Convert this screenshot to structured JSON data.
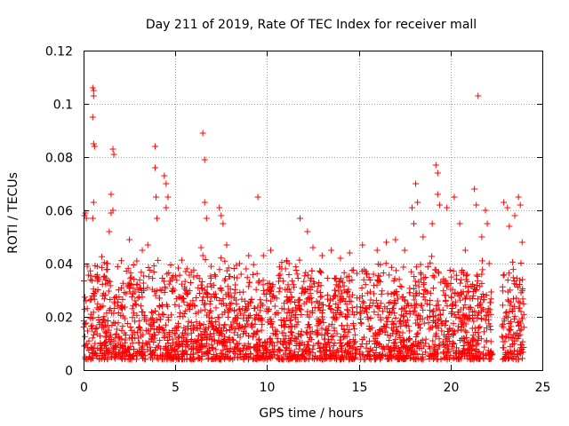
{
  "chart_data": {
    "type": "scatter",
    "title": "Day 211 of 2019, Rate Of TEC Index for receiver mall",
    "xlabel": "GPS time / hours",
    "ylabel": "ROTI / TECUs",
    "xlim": [
      0,
      25
    ],
    "ylim": [
      0,
      0.12
    ],
    "x_ticks": [
      0,
      5,
      10,
      15,
      20,
      25
    ],
    "x_tick_labels": [
      "0",
      "5",
      "10",
      "15",
      "20",
      "25"
    ],
    "y_ticks": [
      0,
      0.02,
      0.04,
      0.06,
      0.08,
      0.1,
      0.12
    ],
    "y_tick_labels": [
      "0",
      "0.02",
      "0.04",
      "0.06",
      "0.08",
      "0.1",
      "0.12"
    ],
    "grid": true,
    "marker": "+",
    "color": "#ff0000",
    "series": [
      {
        "name": "ROTI",
        "points": [
          [
            0.05,
            0.058
          ],
          [
            0.1,
            0.059
          ],
          [
            0.15,
            0.057
          ],
          [
            0.2,
            0.039
          ],
          [
            0.5,
            0.106
          ],
          [
            0.55,
            0.105
          ],
          [
            0.55,
            0.103
          ],
          [
            0.5,
            0.095
          ],
          [
            0.55,
            0.085
          ],
          [
            0.6,
            0.084
          ],
          [
            0.55,
            0.063
          ],
          [
            0.5,
            0.057
          ],
          [
            1.1,
            0.035
          ],
          [
            1.3,
            0.04
          ],
          [
            1.4,
            0.052
          ],
          [
            1.5,
            0.059
          ],
          [
            1.5,
            0.066
          ],
          [
            1.6,
            0.06
          ],
          [
            1.6,
            0.083
          ],
          [
            1.65,
            0.081
          ],
          [
            2.5,
            0.049
          ],
          [
            2.9,
            0.041
          ],
          [
            3.2,
            0.045
          ],
          [
            3.5,
            0.047
          ],
          [
            3.9,
            0.084
          ],
          [
            3.9,
            0.076
          ],
          [
            3.95,
            0.065
          ],
          [
            4.0,
            0.057
          ],
          [
            4.4,
            0.073
          ],
          [
            4.5,
            0.07
          ],
          [
            4.5,
            0.061
          ],
          [
            4.6,
            0.065
          ],
          [
            5.7,
            0.029
          ],
          [
            6.0,
            0.035
          ],
          [
            6.4,
            0.046
          ],
          [
            6.5,
            0.043
          ],
          [
            6.5,
            0.089
          ],
          [
            6.6,
            0.079
          ],
          [
            6.6,
            0.063
          ],
          [
            6.7,
            0.057
          ],
          [
            7.4,
            0.061
          ],
          [
            7.5,
            0.058
          ],
          [
            7.6,
            0.055
          ],
          [
            7.8,
            0.047
          ],
          [
            8.5,
            0.04
          ],
          [
            9.0,
            0.043
          ],
          [
            9.5,
            0.065
          ],
          [
            9.8,
            0.043
          ],
          [
            10.2,
            0.045
          ],
          [
            10.8,
            0.038
          ],
          [
            11.2,
            0.04
          ],
          [
            11.8,
            0.057
          ],
          [
            12.2,
            0.052
          ],
          [
            12.5,
            0.046
          ],
          [
            13.0,
            0.043
          ],
          [
            13.5,
            0.045
          ],
          [
            14.0,
            0.042
          ],
          [
            14.5,
            0.044
          ],
          [
            15.2,
            0.047
          ],
          [
            16.0,
            0.045
          ],
          [
            16.5,
            0.048
          ],
          [
            17.0,
            0.049
          ],
          [
            17.5,
            0.045
          ],
          [
            17.9,
            0.061
          ],
          [
            18.1,
            0.07
          ],
          [
            18.2,
            0.063
          ],
          [
            18.0,
            0.055
          ],
          [
            18.5,
            0.05
          ],
          [
            19.0,
            0.055
          ],
          [
            19.2,
            0.077
          ],
          [
            19.3,
            0.074
          ],
          [
            19.3,
            0.066
          ],
          [
            19.4,
            0.062
          ],
          [
            19.8,
            0.061
          ],
          [
            20.2,
            0.065
          ],
          [
            20.5,
            0.055
          ],
          [
            20.8,
            0.045
          ],
          [
            21.3,
            0.068
          ],
          [
            21.4,
            0.062
          ],
          [
            21.5,
            0.103
          ],
          [
            21.7,
            0.05
          ],
          [
            21.9,
            0.06
          ],
          [
            22.0,
            0.055
          ],
          [
            22.1,
            0.04
          ],
          [
            22.9,
            0.063
          ],
          [
            23.1,
            0.061
          ],
          [
            23.2,
            0.054
          ],
          [
            23.5,
            0.058
          ],
          [
            23.7,
            0.065
          ],
          [
            23.8,
            0.062
          ],
          [
            23.9,
            0.048
          ]
        ],
        "dense_band": [
          {
            "start": 0.0,
            "end": 22.3,
            "low": 0.004,
            "high": 0.03
          },
          {
            "start": 22.8,
            "end": 24.0,
            "low": 0.004,
            "high": 0.03
          }
        ]
      }
    ]
  }
}
